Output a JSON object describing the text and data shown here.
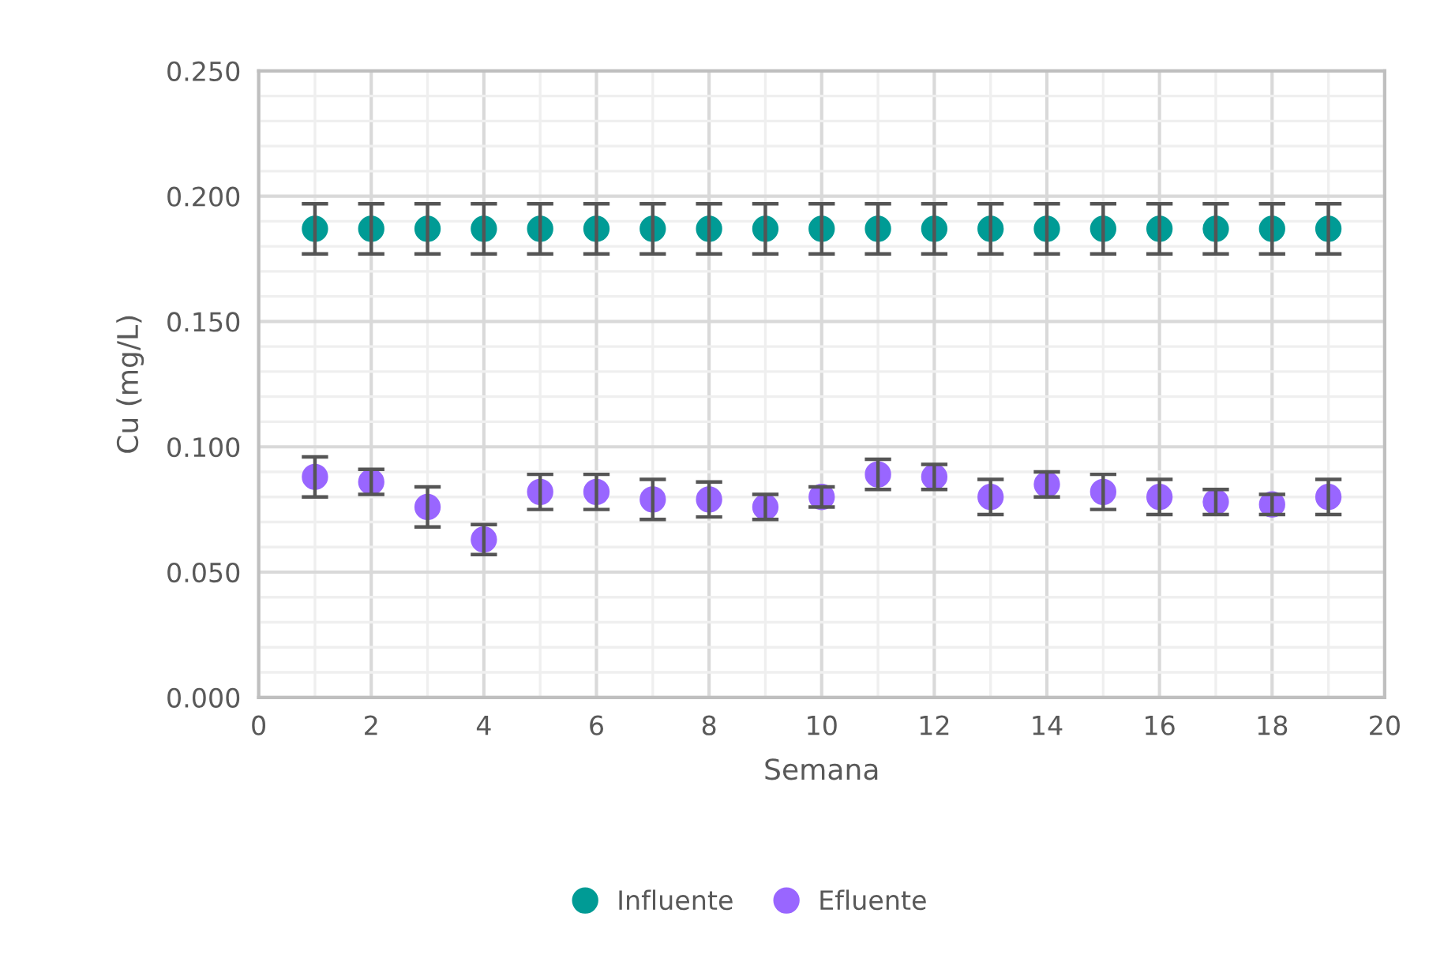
{
  "chart_data": {
    "type": "scatter",
    "xlabel": "Semana",
    "ylabel": "Cu (mg/L)",
    "x": [
      1,
      2,
      3,
      4,
      5,
      6,
      7,
      8,
      9,
      10,
      11,
      12,
      13,
      14,
      15,
      16,
      17,
      18,
      19
    ],
    "series": [
      {
        "name": "Influente",
        "color": "#009b95",
        "values": [
          0.187,
          0.187,
          0.187,
          0.187,
          0.187,
          0.187,
          0.187,
          0.187,
          0.187,
          0.187,
          0.187,
          0.187,
          0.187,
          0.187,
          0.187,
          0.187,
          0.187,
          0.187,
          0.187
        ],
        "errors": [
          0.01,
          0.01,
          0.01,
          0.01,
          0.01,
          0.01,
          0.01,
          0.01,
          0.01,
          0.01,
          0.01,
          0.01,
          0.01,
          0.01,
          0.01,
          0.01,
          0.01,
          0.01,
          0.01
        ]
      },
      {
        "name": "Efluente",
        "color": "#9966ff",
        "values": [
          0.088,
          0.086,
          0.076,
          0.063,
          0.082,
          0.082,
          0.079,
          0.079,
          0.076,
          0.08,
          0.089,
          0.088,
          0.08,
          0.085,
          0.082,
          0.08,
          0.078,
          0.077,
          0.08
        ],
        "errors": [
          0.008,
          0.005,
          0.008,
          0.006,
          0.007,
          0.007,
          0.008,
          0.007,
          0.005,
          0.004,
          0.006,
          0.005,
          0.007,
          0.005,
          0.007,
          0.007,
          0.005,
          0.004,
          0.007
        ]
      }
    ],
    "xlim": [
      0,
      20
    ],
    "xticks": [
      0,
      2,
      4,
      6,
      8,
      10,
      12,
      14,
      16,
      18,
      20
    ],
    "ylim": [
      0,
      0.25
    ],
    "yticks": [
      {
        "value": 0,
        "label": "0.000"
      },
      {
        "value": 0.05,
        "label": "0.050"
      },
      {
        "value": 0.1,
        "label": "0.100"
      },
      {
        "value": 0.15,
        "label": "0.150"
      },
      {
        "value": 0.2,
        "label": "0.200"
      },
      {
        "value": 0.25,
        "label": "0.250"
      }
    ],
    "grid": true,
    "legend": "bottom",
    "marker": "circle"
  }
}
